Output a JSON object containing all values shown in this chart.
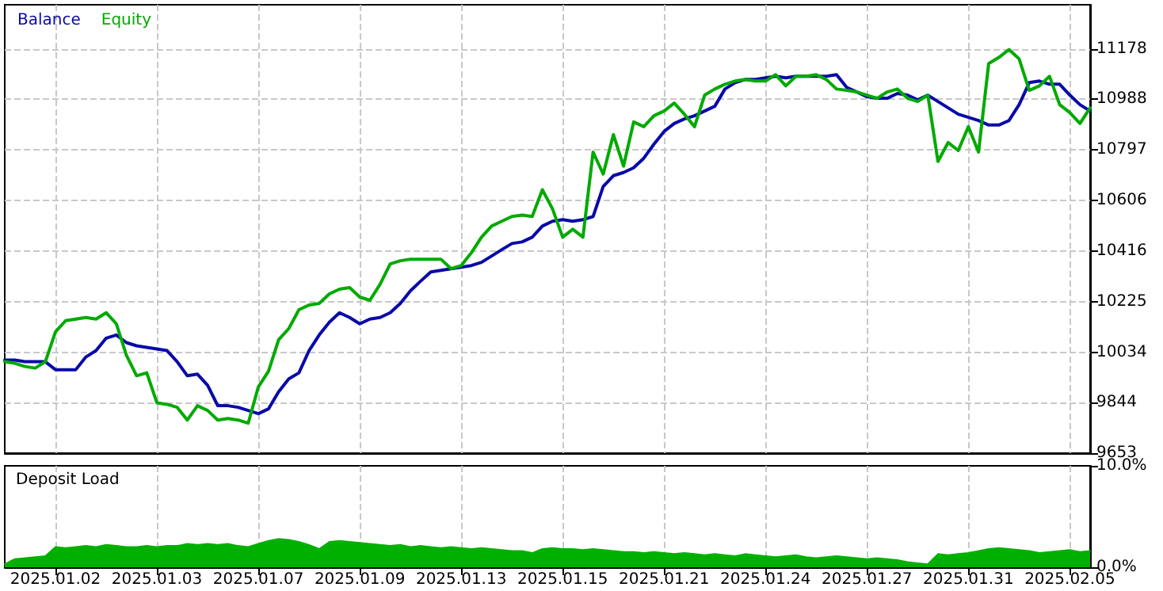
{
  "chart_data": [
    {
      "type": "line",
      "legend": "top left",
      "grid": true,
      "tick_labels": "y",
      "marker": "none",
      "line_style": "solid",
      "categories": [
        null,
        null,
        null,
        null,
        null,
        "2025.01.02",
        null,
        null,
        null,
        null,
        null,
        null,
        null,
        null,
        null,
        "2025.01.03",
        null,
        null,
        null,
        null,
        null,
        null,
        null,
        null,
        null,
        "2025.01.07",
        null,
        null,
        null,
        null,
        null,
        null,
        null,
        null,
        null,
        "2025.01.09",
        null,
        null,
        null,
        null,
        null,
        null,
        null,
        null,
        null,
        "2025.01.13",
        null,
        null,
        null,
        null,
        null,
        null,
        null,
        null,
        null,
        "2025.01.15",
        null,
        null,
        null,
        null,
        null,
        null,
        null,
        null,
        null,
        "2025.01.21",
        null,
        null,
        null,
        null,
        null,
        null,
        null,
        null,
        null,
        "2025.01.24",
        null,
        null,
        null,
        null,
        null,
        null,
        null,
        null,
        null,
        "2025.01.27",
        null,
        null,
        null,
        null,
        null,
        null,
        null,
        null,
        null,
        "2025.01.31",
        null,
        null,
        null,
        null,
        null,
        null,
        null,
        null,
        null,
        "2025.02.05",
        null,
        null
      ],
      "ylim": [
        9653,
        11345
      ],
      "yticks": [
        9653,
        9844,
        10034,
        10225,
        10416,
        10606,
        10797,
        10988,
        11178
      ],
      "series": [
        {
          "name": "Balance",
          "color": "#0a0aa8",
          "values": [
            10004,
            10004,
            9998,
            9998,
            9998,
            9968,
            9968,
            9968,
            10016,
            10040,
            10087,
            10099,
            10070,
            10058,
            10052,
            10046,
            10040,
            9998,
            9945,
            9951,
            9909,
            9832,
            9832,
            9826,
            9814,
            9802,
            9820,
            9885,
            9933,
            9956,
            10040,
            10099,
            10147,
            10183,
            10165,
            10141,
            10159,
            10165,
            10183,
            10218,
            10266,
            10302,
            10337,
            10343,
            10349,
            10355,
            10361,
            10373,
            10397,
            10421,
            10444,
            10450,
            10468,
            10510,
            10528,
            10534,
            10528,
            10534,
            10546,
            10659,
            10700,
            10712,
            10730,
            10766,
            10819,
            10867,
            10897,
            10914,
            10926,
            10944,
            10962,
            11027,
            11051,
            11063,
            11063,
            11069,
            11075,
            11069,
            11075,
            11075,
            11075,
            11075,
            11081,
            11033,
            11016,
            10998,
            10992,
            10992,
            11010,
            11004,
            10986,
            11004,
            10980,
            10956,
            10932,
            10920,
            10908,
            10891,
            10891,
            10908,
            10968,
            11051,
            11057,
            11045,
            11045,
            11004,
            10968,
            10944
          ]
        },
        {
          "name": "Equity",
          "color": "#00aa00",
          "values": [
            9998,
            9992,
            9980,
            9974,
            9998,
            10111,
            10153,
            10159,
            10165,
            10159,
            10183,
            10141,
            10022,
            9945,
            9956,
            9843,
            9837,
            9826,
            9778,
            9832,
            9814,
            9778,
            9784,
            9778,
            9766,
            9903,
            9962,
            10081,
            10123,
            10194,
            10212,
            10218,
            10254,
            10272,
            10278,
            10242,
            10230,
            10290,
            10367,
            10379,
            10385,
            10385,
            10385,
            10385,
            10349,
            10361,
            10409,
            10468,
            10510,
            10528,
            10546,
            10551,
            10546,
            10647,
            10575,
            10468,
            10498,
            10468,
            10789,
            10706,
            10855,
            10736,
            10903,
            10885,
            10926,
            10944,
            10974,
            10932,
            10885,
            11004,
            11027,
            11045,
            11057,
            11063,
            11057,
            11057,
            11081,
            11039,
            11075,
            11075,
            11081,
            11063,
            11027,
            11022,
            11016,
            11004,
            10992,
            11016,
            11027,
            10992,
            10980,
            11004,
            10754,
            10825,
            10795,
            10885,
            10789,
            11123,
            11146,
            11176,
            11141,
            11022,
            11039,
            11075,
            10968,
            10938,
            10897,
            10956
          ]
        }
      ]
    },
    {
      "type": "area",
      "title": "Deposit Load",
      "grid": "x",
      "marker": "none",
      "categories": [
        null,
        null,
        null,
        null,
        null,
        "2025.01.02",
        null,
        null,
        null,
        null,
        null,
        null,
        null,
        null,
        null,
        "2025.01.03",
        null,
        null,
        null,
        null,
        null,
        null,
        null,
        null,
        null,
        "2025.01.07",
        null,
        null,
        null,
        null,
        null,
        null,
        null,
        null,
        null,
        "2025.01.09",
        null,
        null,
        null,
        null,
        null,
        null,
        null,
        null,
        null,
        "2025.01.13",
        null,
        null,
        null,
        null,
        null,
        null,
        null,
        null,
        null,
        "2025.01.15",
        null,
        null,
        null,
        null,
        null,
        null,
        null,
        null,
        null,
        "2025.01.21",
        null,
        null,
        null,
        null,
        null,
        null,
        null,
        null,
        null,
        "2025.01.24",
        null,
        null,
        null,
        null,
        null,
        null,
        null,
        null,
        null,
        "2025.01.27",
        null,
        null,
        null,
        null,
        null,
        null,
        null,
        null,
        null,
        "2025.01.31",
        null,
        null,
        null,
        null,
        null,
        null,
        null,
        null,
        null,
        "2025.02.05",
        null,
        null
      ],
      "ylim": [
        0,
        10
      ],
      "yticks": [
        {
          "value": 0,
          "label": "0.0%"
        },
        {
          "value": 10,
          "label": "10.0%"
        }
      ],
      "series": [
        {
          "color": "#00b000",
          "values": [
            0.3,
            0.8,
            0.9,
            1.0,
            1.1,
            2.0,
            1.9,
            2.0,
            2.1,
            2.0,
            2.2,
            2.1,
            2.0,
            2.0,
            2.1,
            2.0,
            2.1,
            2.1,
            2.3,
            2.2,
            2.3,
            2.2,
            2.3,
            2.1,
            2.0,
            2.3,
            2.6,
            2.8,
            2.7,
            2.5,
            2.2,
            1.8,
            2.5,
            2.6,
            2.5,
            2.4,
            2.3,
            2.2,
            2.1,
            2.2,
            2.0,
            2.1,
            2.0,
            1.9,
            2.0,
            1.9,
            1.8,
            1.9,
            1.8,
            1.7,
            1.6,
            1.6,
            1.4,
            1.8,
            1.9,
            1.8,
            1.8,
            1.7,
            1.8,
            1.7,
            1.6,
            1.5,
            1.5,
            1.4,
            1.5,
            1.4,
            1.3,
            1.4,
            1.3,
            1.2,
            1.3,
            1.2,
            1.1,
            1.3,
            1.2,
            1.1,
            1.0,
            1.1,
            1.2,
            1.0,
            0.9,
            1.0,
            1.1,
            1.0,
            0.9,
            0.8,
            0.9,
            0.8,
            0.7,
            0.5,
            0.4,
            0.3,
            1.3,
            1.2,
            1.3,
            1.4,
            1.6,
            1.8,
            1.9,
            1.8,
            1.7,
            1.6,
            1.4,
            1.5,
            1.6,
            1.7,
            1.5,
            1.6
          ]
        }
      ]
    }
  ]
}
